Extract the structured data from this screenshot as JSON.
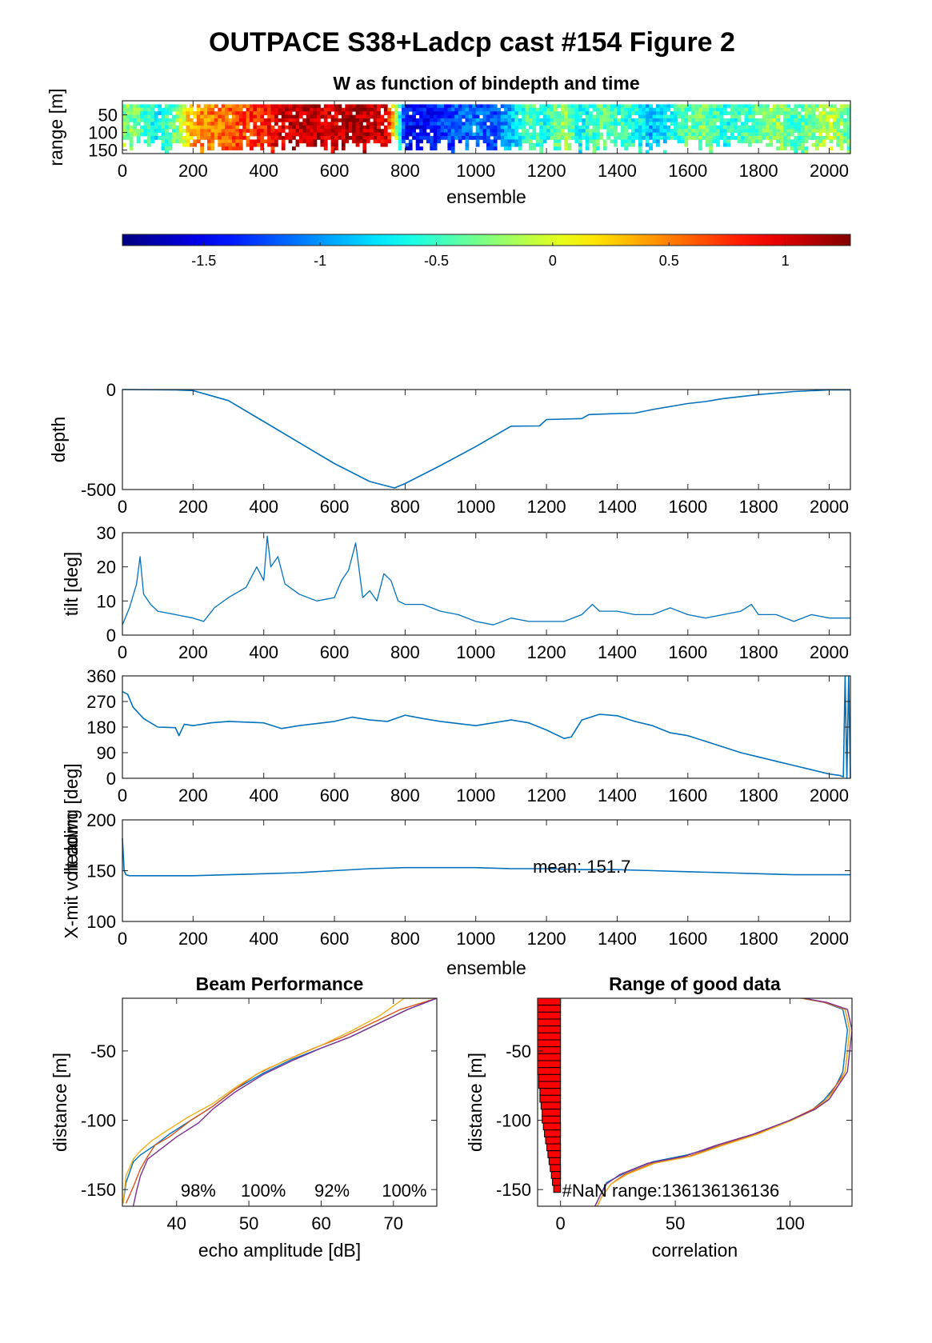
{
  "figure": {
    "title": "OUTPACE S38+Ladcp cast #154 Figure 2"
  },
  "chart_data": [
    {
      "id": "w-image",
      "type": "heatmap",
      "title": "W as function of bindepth and time",
      "xlabel": "ensemble",
      "ylabel": "range [m]",
      "xlim": [
        0,
        2060
      ],
      "ylim": [
        160,
        10
      ],
      "xticks": [
        "0",
        "200",
        "400",
        "600",
        "800",
        "1000",
        "1200",
        "1400",
        "1600",
        "1800",
        "2000"
      ],
      "yticks": [
        "50",
        "100",
        "150"
      ],
      "colormap": "jet",
      "clim": [
        -1.85,
        1.28
      ],
      "colorbar_ticks": [
        "-1.5",
        "-1",
        "-0.5",
        "0",
        "0.5",
        "1"
      ],
      "colorbar_values": [
        -1.5,
        -1,
        -0.5,
        0,
        0.5,
        1
      ],
      "w_by_ensemble": {
        "x": [
          0,
          50,
          100,
          150,
          200,
          250,
          300,
          350,
          400,
          450,
          500,
          550,
          600,
          650,
          700,
          750,
          800,
          850,
          900,
          950,
          1000,
          1050,
          1100,
          1150,
          1200,
          1250,
          1300,
          1350,
          1400,
          1450,
          1500,
          1550,
          1600,
          1650,
          1700,
          1750,
          1800,
          1850,
          1900,
          1950,
          2000,
          2060
        ],
        "w": [
          -0.2,
          -0.4,
          -0.7,
          -0.3,
          0.4,
          0.5,
          0.6,
          0.7,
          0.8,
          1.0,
          1.1,
          1.1,
          1.0,
          1.2,
          1.1,
          1.0,
          -1.4,
          -1.5,
          -1.3,
          -1.2,
          -1.1,
          -1.2,
          -0.9,
          -0.4,
          -0.6,
          -0.2,
          -0.7,
          -0.4,
          -0.5,
          -0.6,
          -0.9,
          -0.6,
          -0.4,
          -0.3,
          -0.6,
          -0.5,
          -0.4,
          -0.2,
          -0.5,
          -0.3,
          -0.1,
          -0.4
        ]
      }
    },
    {
      "id": "depth",
      "type": "line",
      "xlabel": "",
      "ylabel": "depth",
      "xlim": [
        0,
        2060
      ],
      "ylim": [
        -500,
        0
      ],
      "xticks": [
        "0",
        "200",
        "400",
        "600",
        "800",
        "1000",
        "1200",
        "1400",
        "1600",
        "1800",
        "2000"
      ],
      "yticks": [
        "0",
        "-500"
      ],
      "ytick_values": [
        0,
        -500
      ],
      "color": "#0072BD",
      "x": [
        0,
        150,
        200,
        300,
        400,
        500,
        600,
        700,
        770,
        800,
        900,
        1000,
        1100,
        1180,
        1200,
        1300,
        1320,
        1400,
        1450,
        1500,
        1600,
        1650,
        1700,
        1750,
        1800,
        1900,
        2000,
        2060
      ],
      "y": [
        0,
        -2,
        -5,
        -55,
        -160,
        -265,
        -370,
        -460,
        -492,
        -470,
        -380,
        -285,
        -183,
        -182,
        -150,
        -145,
        -125,
        -120,
        -118,
        -100,
        -70,
        -60,
        -45,
        -35,
        -25,
        -10,
        -2,
        -2
      ]
    },
    {
      "id": "tilt",
      "type": "line",
      "ylabel": "tilt [deg]",
      "xlim": [
        0,
        2060
      ],
      "ylim": [
        0,
        30
      ],
      "xticks": [
        "0",
        "200",
        "400",
        "600",
        "800",
        "1000",
        "1200",
        "1400",
        "1600",
        "1800",
        "2000"
      ],
      "yticks": [
        "0",
        "10",
        "20",
        "30"
      ],
      "ytick_values": [
        0,
        10,
        20,
        30
      ],
      "color": "#0072BD",
      "x": [
        0,
        20,
        40,
        50,
        60,
        80,
        100,
        150,
        200,
        230,
        260,
        300,
        350,
        380,
        400,
        410,
        420,
        440,
        460,
        500,
        550,
        600,
        620,
        640,
        660,
        680,
        700,
        720,
        740,
        760,
        780,
        800,
        850,
        900,
        950,
        1000,
        1050,
        1100,
        1150,
        1200,
        1250,
        1300,
        1330,
        1350,
        1400,
        1450,
        1500,
        1550,
        1600,
        1650,
        1700,
        1750,
        1780,
        1800,
        1850,
        1900,
        1950,
        2000,
        2060
      ],
      "y": [
        3,
        8,
        15,
        23,
        12,
        9,
        7,
        6,
        5,
        4,
        8,
        11,
        14,
        20,
        16,
        29,
        20,
        23,
        15,
        12,
        10,
        11,
        16,
        19,
        27,
        11,
        13,
        10,
        18,
        16,
        10,
        9,
        9,
        7,
        6,
        4,
        3,
        5,
        4,
        4,
        4,
        6,
        9,
        7,
        7,
        6,
        6,
        8,
        6,
        5,
        6,
        7,
        9,
        6,
        6,
        4,
        6,
        5,
        5
      ]
    },
    {
      "id": "heading",
      "type": "line",
      "ylabel": "heading [deg]",
      "xlim": [
        0,
        2060
      ],
      "ylim": [
        0,
        360
      ],
      "xticks": [
        "0",
        "200",
        "400",
        "600",
        "800",
        "1000",
        "1200",
        "1400",
        "1600",
        "1800",
        "2000"
      ],
      "yticks": [
        "0",
        "90",
        "180",
        "270",
        "360"
      ],
      "ytick_values": [
        0,
        90,
        180,
        270,
        360
      ],
      "color": "#0072BD",
      "x": [
        0,
        15,
        30,
        60,
        100,
        150,
        160,
        175,
        200,
        250,
        300,
        400,
        450,
        500,
        600,
        650,
        700,
        750,
        800,
        850,
        900,
        1000,
        1100,
        1150,
        1200,
        1250,
        1270,
        1300,
        1350,
        1400,
        1450,
        1500,
        1550,
        1600,
        1650,
        1700,
        1750,
        1800,
        1850,
        1900,
        1950,
        2000,
        2030,
        2040,
        2045,
        2050,
        2055,
        2060
      ],
      "y": [
        305,
        295,
        250,
        210,
        180,
        178,
        150,
        190,
        185,
        195,
        200,
        195,
        175,
        185,
        200,
        215,
        205,
        200,
        222,
        210,
        200,
        185,
        205,
        195,
        170,
        140,
        145,
        205,
        225,
        220,
        200,
        185,
        160,
        150,
        130,
        110,
        90,
        75,
        60,
        45,
        30,
        15,
        10,
        5,
        360,
        0,
        360,
        0
      ]
    },
    {
      "id": "xmit-volt",
      "type": "line",
      "xlabel": "ensemble",
      "ylabel": "X-mit volt down",
      "xlim": [
        0,
        2060
      ],
      "ylim": [
        100,
        200
      ],
      "xticks": [
        "0",
        "200",
        "400",
        "600",
        "800",
        "1000",
        "1200",
        "1400",
        "1600",
        "1800",
        "2000"
      ],
      "yticks": [
        "100",
        "150",
        "200"
      ],
      "ytick_values": [
        100,
        150,
        200
      ],
      "color": "#0072BD",
      "annotation": "mean: 151.7",
      "x": [
        0,
        5,
        10,
        20,
        100,
        200,
        300,
        400,
        500,
        600,
        700,
        800,
        900,
        1000,
        1100,
        1200,
        1300,
        1400,
        1500,
        1600,
        1700,
        1800,
        1900,
        2000,
        2060
      ],
      "y": [
        182,
        150,
        146,
        145,
        145,
        145,
        146,
        147,
        148,
        150,
        152,
        153,
        153,
        153,
        152,
        152,
        151,
        151,
        150,
        149,
        148,
        147,
        146,
        146,
        146
      ]
    },
    {
      "id": "beam-performance",
      "type": "line",
      "title": "Beam Performance",
      "xlabel": "echo amplitude [dB]",
      "ylabel": "distance [m]",
      "xlim": [
        32.5,
        76
      ],
      "ylim": [
        -162,
        -12
      ],
      "xticks": [
        "40",
        "50",
        "60",
        "70"
      ],
      "xtick_values": [
        40,
        50,
        60,
        70
      ],
      "yticks": [
        "-50",
        "-100",
        "-150"
      ],
      "ytick_values": [
        -50,
        -100,
        -150
      ],
      "annotations": [
        "98%",
        "100%",
        "92%",
        "100%"
      ],
      "series": [
        {
          "color": "#0072BD",
          "x": [
            76,
            72,
            68,
            64,
            60,
            56,
            52,
            48,
            45,
            42,
            39,
            37,
            35,
            34,
            33,
            32.6
          ],
          "y": [
            -12,
            -20,
            -30,
            -40,
            -48,
            -56,
            -66,
            -78,
            -90,
            -100,
            -110,
            -118,
            -125,
            -130,
            -145,
            -160
          ]
        },
        {
          "color": "#D95319",
          "x": [
            76,
            71,
            67,
            63,
            59,
            55,
            51,
            48,
            45,
            42,
            39,
            37,
            36,
            35,
            34,
            33
          ],
          "y": [
            -12,
            -20,
            -30,
            -40,
            -48,
            -57,
            -67,
            -78,
            -90,
            -100,
            -112,
            -118,
            -126,
            -135,
            -148,
            -160
          ]
        },
        {
          "color": "#EDB120",
          "x": [
            76,
            71.5,
            68,
            64,
            60,
            56,
            52,
            48.5,
            45,
            41.5,
            38.5,
            36.5,
            35,
            34,
            33,
            32.6
          ],
          "y": [
            -12,
            -12,
            -25,
            -36,
            -46,
            -55,
            -64,
            -75,
            -88,
            -98,
            -108,
            -115,
            -122,
            -128,
            -140,
            -160
          ]
        },
        {
          "color": "#7E2F8E",
          "x": [
            76,
            72,
            68,
            64,
            60,
            56,
            52,
            48,
            45,
            43,
            40,
            38,
            36,
            35,
            34.5,
            34
          ],
          "y": [
            -12,
            -20,
            -30,
            -40,
            -48,
            -57,
            -67,
            -80,
            -92,
            -102,
            -112,
            -120,
            -128,
            -140,
            -150,
            -162
          ]
        }
      ]
    },
    {
      "id": "range-good-data",
      "type": "line",
      "title": "Range of good data",
      "xlabel": "correlation",
      "ylabel": "distance [m]",
      "xlim": [
        -10,
        127
      ],
      "ylim": [
        -162,
        -12
      ],
      "xticks": [
        "0",
        "50",
        "100"
      ],
      "xtick_values": [
        0,
        50,
        100
      ],
      "yticks": [
        "-50",
        "-100",
        "-150"
      ],
      "ytick_values": [
        -50,
        -100,
        -150
      ],
      "annotation": "#NaN range:136136136136",
      "bars": {
        "color": "#FF0000",
        "x": [
          -10,
          -10,
          -10,
          -10,
          -10,
          -10,
          -10,
          -10,
          -10,
          -10,
          -10,
          -9.5,
          -9.5,
          -9,
          -9,
          -8.5,
          -8,
          -8,
          -7.5,
          -7,
          -6.5,
          -6,
          -5.5,
          -5,
          -4.5,
          -4,
          -3.5,
          -3
        ],
        "y": [
          -12,
          -17,
          -22,
          -27,
          -32,
          -37,
          -42,
          -47,
          -52,
          -57,
          -62,
          -67,
          -72,
          -77,
          -82,
          -87,
          -92,
          -97,
          -102,
          -107,
          -112,
          -117,
          -122,
          -127,
          -132,
          -137,
          -142,
          -147
        ]
      },
      "series": [
        {
          "color": "#0072BD",
          "x": [
            105,
            115,
            123,
            125,
            124,
            123,
            120,
            115,
            110,
            100,
            85,
            70,
            55,
            40,
            28,
            20,
            17,
            15
          ],
          "y": [
            -12,
            -15,
            -20,
            -35,
            -50,
            -65,
            -75,
            -85,
            -92,
            -100,
            -110,
            -118,
            -125,
            -130,
            -138,
            -145,
            -155,
            -162
          ]
        },
        {
          "color": "#D95319",
          "x": [
            105,
            115,
            124,
            126,
            125,
            124,
            120,
            116,
            110,
            100,
            85,
            70,
            56,
            40,
            28,
            22,
            18,
            16
          ],
          "y": [
            -12,
            -15,
            -20,
            -35,
            -50,
            -65,
            -75,
            -85,
            -92,
            -100,
            -110,
            -118,
            -126,
            -131,
            -139,
            -146,
            -155,
            -162
          ]
        },
        {
          "color": "#EDB120",
          "x": [
            105,
            116,
            124,
            126,
            125,
            124,
            121,
            116,
            111,
            101,
            86,
            71,
            57,
            41,
            29,
            22,
            18,
            16
          ],
          "y": [
            -12,
            -15,
            -20,
            -35,
            -50,
            -65,
            -75,
            -85,
            -92,
            -100,
            -110,
            -118,
            -126,
            -131,
            -139,
            -146,
            -155,
            -162
          ]
        },
        {
          "color": "#7E2F8E",
          "x": [
            106,
            116,
            125,
            127,
            126,
            125,
            121,
            117,
            111,
            100,
            84,
            68,
            54,
            38,
            26,
            20,
            17,
            15
          ],
          "y": [
            -12,
            -15,
            -20,
            -35,
            -50,
            -65,
            -75,
            -85,
            -92,
            -100,
            -110,
            -118,
            -126,
            -131,
            -139,
            -146,
            -155,
            -162
          ]
        }
      ]
    }
  ]
}
